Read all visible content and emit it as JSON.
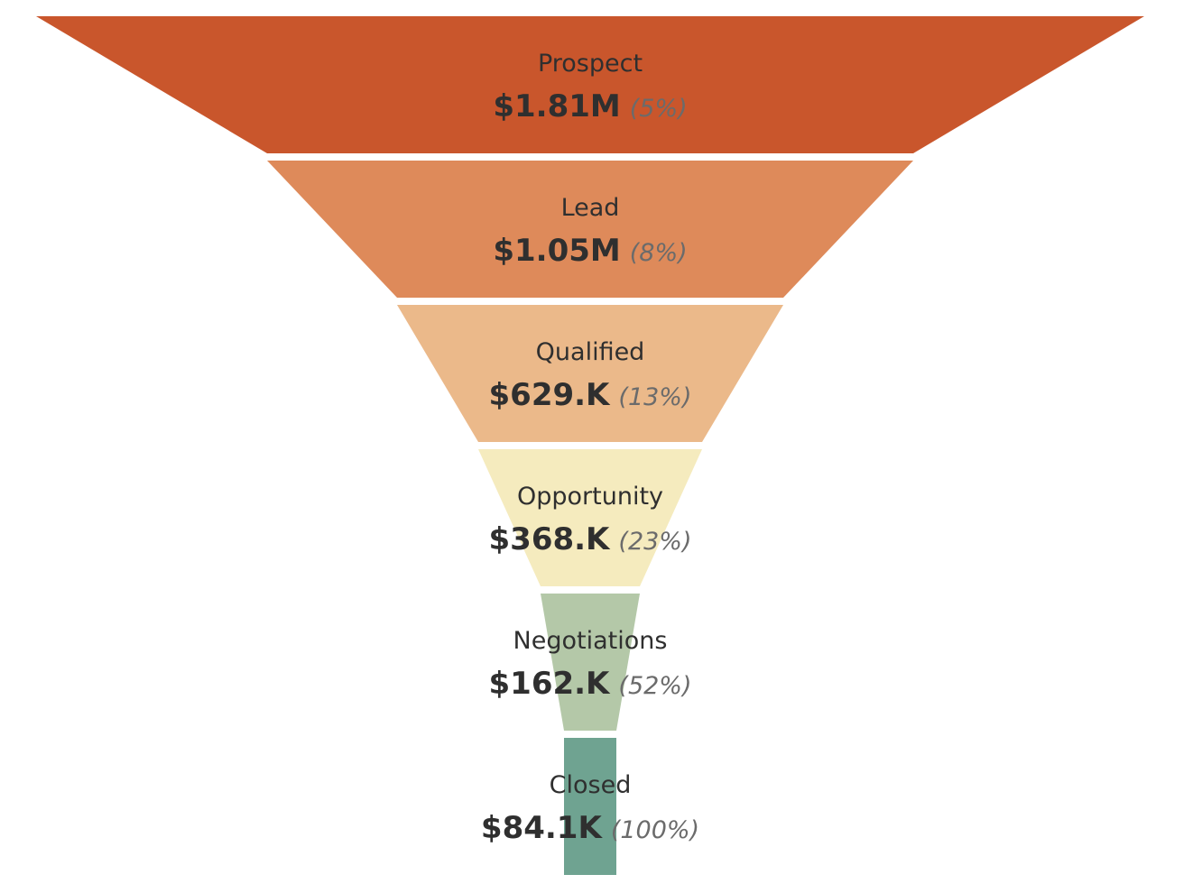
{
  "chart_data": {
    "type": "funnel",
    "stages": [
      {
        "label": "Prospect",
        "value": 1810000,
        "value_label": "$1.81M",
        "pct_label": "(5%)",
        "color": "#C9562C"
      },
      {
        "label": "Lead",
        "value": 1050000,
        "value_label": "$1.05M",
        "pct_label": "(8%)",
        "color": "#DE8A5A"
      },
      {
        "label": "Qualified",
        "value": 629000,
        "value_label": "$629.K",
        "pct_label": "(13%)",
        "color": "#EBB98A"
      },
      {
        "label": "Opportunity",
        "value": 368000,
        "value_label": "$368.K",
        "pct_label": "(23%)",
        "color": "#F5EBBE"
      },
      {
        "label": "Negotiations",
        "value": 162000,
        "value_label": "$162.K",
        "pct_label": "(52%)",
        "color": "#B4C8A8"
      },
      {
        "label": "Closed",
        "value": 84100,
        "value_label": "$84.1K",
        "pct_label": "(100%)",
        "color": "#6FA391"
      }
    ]
  }
}
